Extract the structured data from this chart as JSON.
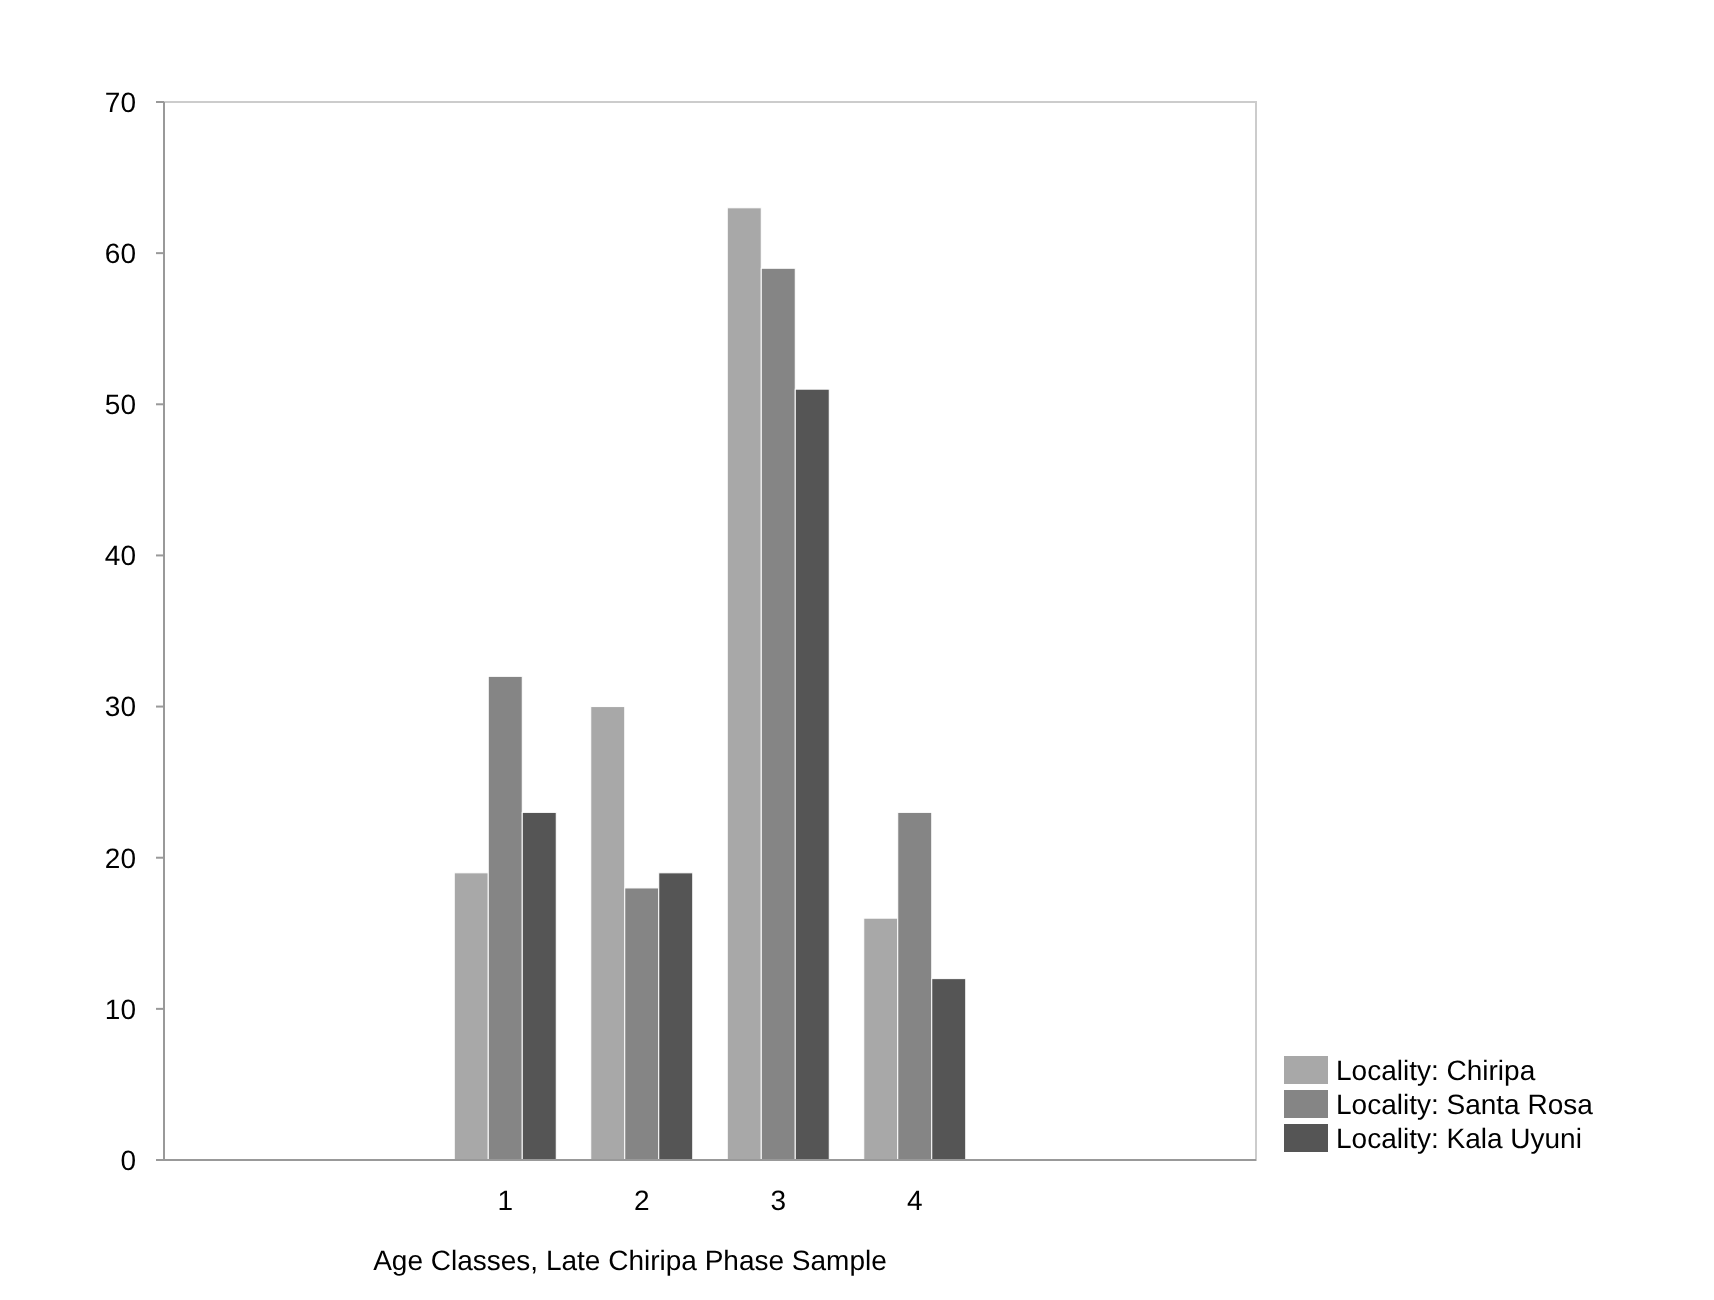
{
  "chart_data": {
    "type": "bar",
    "xlabel": "Age Classes, Late Chiripa Phase Sample",
    "categories": [
      null,
      null,
      "1",
      "2",
      "3",
      "4",
      null,
      null
    ],
    "series": [
      {
        "name": "Locality: Chiripa",
        "color": "#a8a8a8",
        "values": [
          null,
          null,
          19,
          30,
          63,
          16,
          null,
          null
        ]
      },
      {
        "name": "Locality: Santa Rosa",
        "color": "#858585",
        "values": [
          null,
          null,
          32,
          18,
          59,
          23,
          null,
          null
        ]
      },
      {
        "name": "Locality: Kala Uyuni",
        "color": "#555555",
        "values": [
          null,
          null,
          23,
          19,
          51,
          12,
          null,
          null
        ]
      }
    ],
    "ylim": [
      0,
      70
    ],
    "yticks": [
      0,
      10,
      20,
      30,
      40,
      50,
      60,
      70
    ],
    "grid": false,
    "legend": "bottom right"
  }
}
